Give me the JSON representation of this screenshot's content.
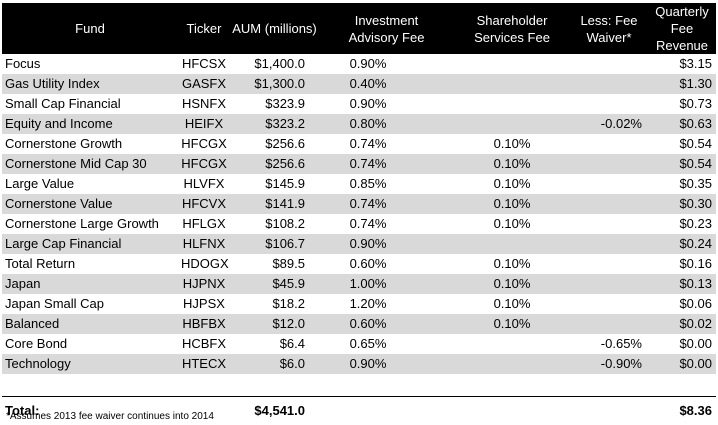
{
  "headers": {
    "fund": "Fund",
    "ticker": "Ticker",
    "aum": "AUM (millions)",
    "iaf_line1": "Investment",
    "iaf_line2": "Advisory Fee",
    "ssf_line1": "Shareholder",
    "ssf_line2": "Services Fee",
    "fw_line1": "Less: Fee",
    "fw_line2": "Waiver*",
    "qfr_line1": "Quarterly Fee",
    "qfr_line2": "Revenue"
  },
  "rows": [
    {
      "fund": "Focus",
      "ticker": "HFCSX",
      "aum": "$1,400.0",
      "iaf": "0.90%",
      "ssf": "",
      "fw": "",
      "qfr": "$3.15"
    },
    {
      "fund": "Gas Utility Index",
      "ticker": "GASFX",
      "aum": "$1,300.0",
      "iaf": "0.40%",
      "ssf": "",
      "fw": "",
      "qfr": "$1.30"
    },
    {
      "fund": "Small Cap Financial",
      "ticker": "HSNFX",
      "aum": "$323.9",
      "iaf": "0.90%",
      "ssf": "",
      "fw": "",
      "qfr": "$0.73"
    },
    {
      "fund": "Equity and Income",
      "ticker": "HEIFX",
      "aum": "$323.2",
      "iaf": "0.80%",
      "ssf": "",
      "fw": "-0.02%",
      "qfr": "$0.63"
    },
    {
      "fund": "Cornerstone Growth",
      "ticker": "HFCGX",
      "aum": "$256.6",
      "iaf": "0.74%",
      "ssf": "0.10%",
      "fw": "",
      "qfr": "$0.54"
    },
    {
      "fund": "Cornerstone Mid Cap 30",
      "ticker": "HFCGX",
      "aum": "$256.6",
      "iaf": "0.74%",
      "ssf": "0.10%",
      "fw": "",
      "qfr": "$0.54"
    },
    {
      "fund": "Large Value",
      "ticker": "HLVFX",
      "aum": "$145.9",
      "iaf": "0.85%",
      "ssf": "0.10%",
      "fw": "",
      "qfr": "$0.35"
    },
    {
      "fund": "Cornerstone Value",
      "ticker": "HFCVX",
      "aum": "$141.9",
      "iaf": "0.74%",
      "ssf": "0.10%",
      "fw": "",
      "qfr": "$0.30"
    },
    {
      "fund": "Cornerstone Large Growth",
      "ticker": "HFLGX",
      "aum": "$108.2",
      "iaf": "0.74%",
      "ssf": "0.10%",
      "fw": "",
      "qfr": "$0.23"
    },
    {
      "fund": "Large Cap Financial",
      "ticker": "HLFNX",
      "aum": "$106.7",
      "iaf": "0.90%",
      "ssf": "",
      "fw": "",
      "qfr": "$0.24"
    },
    {
      "fund": "Total Return",
      "ticker": "HDOGX",
      "aum": "$89.5",
      "iaf": "0.60%",
      "ssf": "0.10%",
      "fw": "",
      "qfr": "$0.16"
    },
    {
      "fund": "Japan",
      "ticker": "HJPNX",
      "aum": "$45.9",
      "iaf": "1.00%",
      "ssf": "0.10%",
      "fw": "",
      "qfr": "$0.13"
    },
    {
      "fund": "Japan Small Cap",
      "ticker": "HJPSX",
      "aum": "$18.2",
      "iaf": "1.20%",
      "ssf": "0.10%",
      "fw": "",
      "qfr": "$0.06"
    },
    {
      "fund": "Balanced",
      "ticker": "HBFBX",
      "aum": "$12.0",
      "iaf": "0.60%",
      "ssf": "0.10%",
      "fw": "",
      "qfr": "$0.02"
    },
    {
      "fund": "Core Bond",
      "ticker": "HCBFX",
      "aum": "$6.4",
      "iaf": "0.65%",
      "ssf": "",
      "fw": "-0.65%",
      "qfr": "$0.00"
    },
    {
      "fund": "Technology",
      "ticker": "HTECX",
      "aum": "$6.0",
      "iaf": "0.90%",
      "ssf": "",
      "fw": "-0.90%",
      "qfr": "$0.00"
    }
  ],
  "total": {
    "label": "Total:",
    "aum": "$4,541.0",
    "qfr": "$8.36"
  },
  "footnote": "*Assumes 2013 fee waiver continues into 2014",
  "colors": {
    "header_bg": "#000000",
    "header_text": "#ffffff",
    "stripe": "#d9d9d9"
  }
}
